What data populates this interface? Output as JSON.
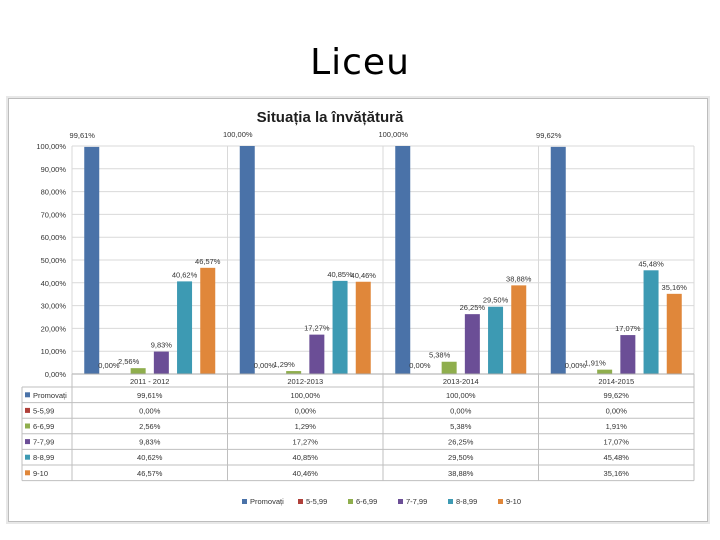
{
  "slide": {
    "title": "Liceu"
  },
  "chart_data": {
    "type": "bar",
    "title": "Situația la învățătură",
    "xlabel": "",
    "ylabel": "",
    "ylim": [
      0,
      100
    ],
    "y_ticks": [
      "0,00%",
      "10,00%",
      "20,00%",
      "30,00%",
      "40,00%",
      "50,00%",
      "60,00%",
      "70,00%",
      "80,00%",
      "90,00%",
      "100,00%"
    ],
    "categories": [
      "2011 - 2012",
      "2012-2013",
      "2013-2014",
      "2014-2015"
    ],
    "grid": true,
    "legend": "bottom",
    "series": [
      {
        "name": "Promovați",
        "color": "#4a72a8",
        "values": [
          99.61,
          100.0,
          100.0,
          99.62
        ],
        "labels": [
          "99,61%",
          "100,00%",
          "100,00%",
          "99,62%"
        ]
      },
      {
        "name": "5-5,99",
        "color": "#b0403a",
        "values": [
          0.0,
          0.0,
          0.0,
          0.0
        ],
        "labels": [
          "0,00%",
          "0,00%",
          "0,00%",
          "0,00%"
        ]
      },
      {
        "name": "6-6,99",
        "color": "#8fae4d",
        "values": [
          2.56,
          1.29,
          5.38,
          1.91
        ],
        "labels": [
          "2,56%",
          "1,29%",
          "5,38%",
          "1,91%"
        ]
      },
      {
        "name": "7-7,99",
        "color": "#6b4e96",
        "values": [
          9.83,
          17.27,
          26.25,
          17.07
        ],
        "labels": [
          "9,83%",
          "17,27%",
          "26,25%",
          "17,07%"
        ]
      },
      {
        "name": "8-8,99",
        "color": "#3d9ab3",
        "values": [
          40.62,
          40.85,
          29.5,
          45.48
        ],
        "labels": [
          "40,62%",
          "40,85%",
          "29,50%",
          "45,48%"
        ]
      },
      {
        "name": "9-10",
        "color": "#e0873a",
        "values": [
          46.57,
          40.46,
          38.88,
          35.16
        ],
        "labels": [
          "46,57%",
          "40,46%",
          "38,88%",
          "35,16%"
        ]
      }
    ]
  }
}
